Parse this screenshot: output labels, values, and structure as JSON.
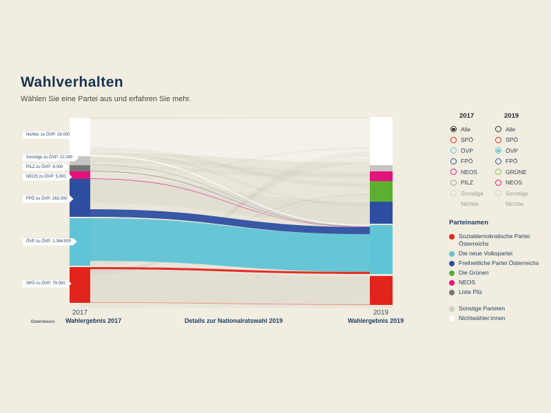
{
  "page": {
    "title": "Wahlverhalten",
    "subtitle": "Wählen Sie eine Partei aus und erfahren Sie mehr.",
    "background": "#f1ede1"
  },
  "colors": {
    "spoe": "#e2251c",
    "oevp": "#5fc4d5",
    "fpoe": "#2e4fa1",
    "gruene": "#5caf31",
    "gruene_radio": "#7bbd4a",
    "neos": "#e5117c",
    "pilz": "#787579",
    "sonstige": "#c7c5c1",
    "nichtw": "#ffffff",
    "alle": "#2b2b2b",
    "navy": "#1c3a5e"
  },
  "chart_data": {
    "type": "sankey",
    "title": "Wahlverhalten",
    "selected_2017": "Alle",
    "selected_2019": "ÖVP",
    "columns": [
      {
        "year": "2017",
        "nodes": [
          {
            "party": "Nichtwähler:innen",
            "color": "#ffffff"
          },
          {
            "party": "Sonstige",
            "color": "#c7c5c1"
          },
          {
            "party": "PILZ",
            "color": "#787579"
          },
          {
            "party": "NEOS",
            "color": "#e5117c"
          },
          {
            "party": "FPÖ",
            "color": "#2e4fa1"
          },
          {
            "party": "ÖVP",
            "color": "#5fc4d5"
          },
          {
            "party": "SPÖ",
            "color": "#e2251c"
          }
        ]
      },
      {
        "year": "2019",
        "nodes": [
          {
            "party": "Nichtwähler:innen",
            "color": "#ffffff"
          },
          {
            "party": "Sonstige",
            "color": "#c7c5c1"
          },
          {
            "party": "NEOS",
            "color": "#e5117c"
          },
          {
            "party": "GRÜNE",
            "color": "#5caf31"
          },
          {
            "party": "FPÖ",
            "color": "#2e4fa1"
          },
          {
            "party": "ÖVP",
            "color": "#5fc4d5"
          },
          {
            "party": "SPÖ",
            "color": "#e2251c"
          }
        ]
      }
    ],
    "highlighted_flows": [
      {
        "label": "Nichtw. zu ÖVP: 28.000",
        "source": "Nichtwähler:innen",
        "target": "ÖVP",
        "value": 28000
      },
      {
        "label": "Sonstige zu ÖVP: 22.000",
        "source": "Sonstige",
        "target": "ÖVP",
        "value": 22000
      },
      {
        "label": "PILZ zu ÖVP: 8.000",
        "source": "PILZ",
        "target": "ÖVP",
        "value": 8000
      },
      {
        "label": "NEOS zu ÖVP: 5.000",
        "source": "NEOS",
        "target": "ÖVP",
        "value": 5000
      },
      {
        "label": "FPÖ zu ÖVP: 263.000",
        "source": "FPÖ",
        "target": "ÖVP",
        "value": 263000
      },
      {
        "label": "ÖVP zu ÖVP: 1.384.000",
        "source": "ÖVP",
        "target": "ÖVP",
        "value": 1384000
      },
      {
        "label": "SPÖ zu ÖVP: 79.000",
        "source": "SPÖ",
        "target": "ÖVP",
        "value": 79000
      }
    ],
    "axis_labels": {
      "left": "2017",
      "right": "2019"
    }
  },
  "controls": {
    "columns": [
      {
        "header": "2017",
        "options": [
          {
            "label": "Alle",
            "color": "#2b2b2b",
            "selected": true,
            "muted": false
          },
          {
            "label": "SPÖ",
            "color": "#e2251c",
            "selected": false,
            "muted": false
          },
          {
            "label": "ÖVP",
            "color": "#5fc4d5",
            "selected": false,
            "muted": false
          },
          {
            "label": "FPÖ",
            "color": "#2e4fa1",
            "selected": false,
            "muted": false
          },
          {
            "label": "NEOS",
            "color": "#e5117c",
            "selected": false,
            "muted": false
          },
          {
            "label": "PILZ",
            "color": "#9a989b",
            "selected": false,
            "muted": false
          },
          {
            "label": "Sonstige",
            "color": "#d5d2cc",
            "selected": false,
            "muted": true
          },
          {
            "label": "Nichtw.",
            "color": "#efece4",
            "selected": false,
            "muted": true
          }
        ]
      },
      {
        "header": "2019",
        "options": [
          {
            "label": "Alle",
            "color": "#2b2b2b",
            "selected": false,
            "muted": false
          },
          {
            "label": "SPÖ",
            "color": "#e2251c",
            "selected": false,
            "muted": false
          },
          {
            "label": "ÖVP",
            "color": "#5fc4d5",
            "selected": true,
            "muted": false
          },
          {
            "label": "FPÖ",
            "color": "#2e4fa1",
            "selected": false,
            "muted": false
          },
          {
            "label": "GRÜNE",
            "color": "#7bbd4a",
            "selected": false,
            "muted": false
          },
          {
            "label": "NEOS",
            "color": "#e5117c",
            "selected": false,
            "muted": false
          },
          {
            "label": "Sonstige",
            "color": "#d5d2cc",
            "selected": false,
            "muted": true
          },
          {
            "label": "Nichtw.",
            "color": "#efece4",
            "selected": false,
            "muted": true
          }
        ]
      }
    ]
  },
  "party_legend": {
    "heading": "Parteinamen",
    "items": [
      {
        "label": "Sozialdemokratische Partei Österreichs",
        "color": "#e2251c"
      },
      {
        "label": "Die neue Volkspartei",
        "color": "#5fc4d5"
      },
      {
        "label": "Freiheitliche Partei Österreichs",
        "color": "#2e4fa1"
      },
      {
        "label": "Die Grünen",
        "color": "#5caf31"
      },
      {
        "label": "NEOS",
        "color": "#e5117c"
      },
      {
        "label": "Liste Pilz",
        "color": "#787579"
      }
    ],
    "items_secondary": [
      {
        "label": "Sonstige Parteien",
        "color": "#cfccc6"
      },
      {
        "label": "Nichtwähler:innen",
        "color": "#ffffff"
      }
    ]
  },
  "footer": {
    "datenbasis_label": "Datenbasis",
    "tabs": [
      "Wahlergebnis 2017",
      "Details zur Nationalratswahl 2019",
      "Wahlergebnis 2019"
    ]
  }
}
